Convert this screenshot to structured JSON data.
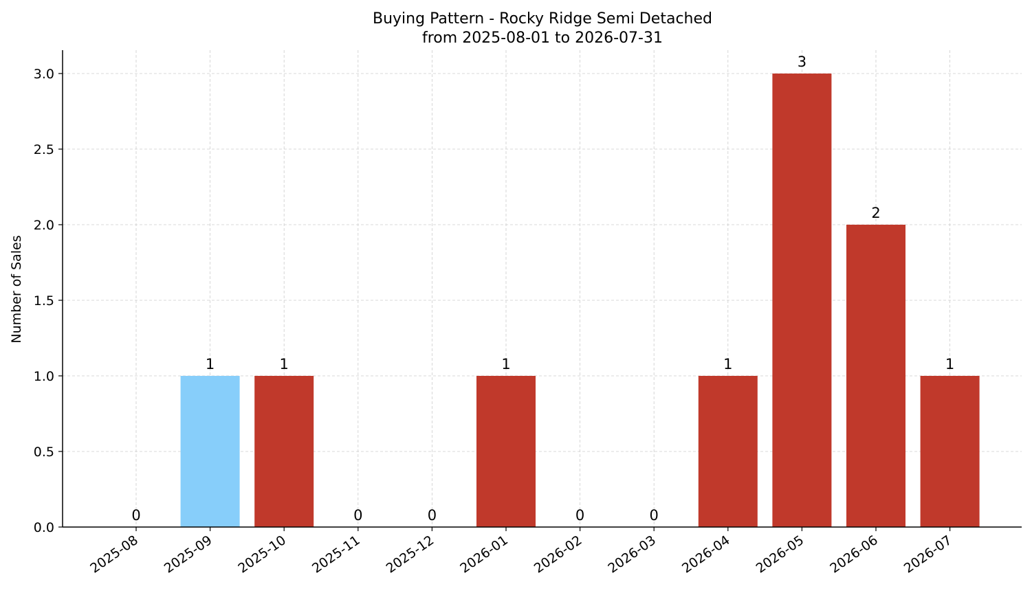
{
  "chart_data": {
    "type": "bar",
    "title": "Buying Pattern - Rocky Ridge Semi Detached",
    "subtitle": "from 2025-08-01 to 2026-07-31",
    "xlabel": "",
    "ylabel": "Number of Sales",
    "categories": [
      "2025-08",
      "2025-09",
      "2025-10",
      "2025-11",
      "2025-12",
      "2026-01",
      "2026-02",
      "2026-03",
      "2026-04",
      "2026-05",
      "2026-06",
      "2026-07"
    ],
    "values": [
      0,
      1,
      1,
      0,
      0,
      1,
      0,
      0,
      1,
      3,
      2,
      1
    ],
    "bar_colors": [
      "#c0392b",
      "#87cefa",
      "#c0392b",
      "#c0392b",
      "#c0392b",
      "#c0392b",
      "#c0392b",
      "#c0392b",
      "#c0392b",
      "#c0392b",
      "#c0392b",
      "#c0392b"
    ],
    "ylim": [
      0,
      3.15
    ],
    "yticks": [
      "0.0",
      "0.5",
      "1.0",
      "1.5",
      "2.0",
      "2.5",
      "3.0"
    ],
    "grid": true,
    "legend": "none"
  }
}
